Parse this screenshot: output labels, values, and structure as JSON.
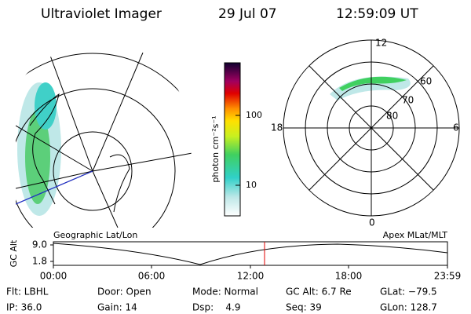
{
  "header": {
    "title": "Ultraviolet Imager",
    "date": "29 Jul 07",
    "time": "12:59:09 UT"
  },
  "colorbar": {
    "label": "photon cm⁻²s⁻¹",
    "ticks": [
      "100",
      "10"
    ]
  },
  "polar": {
    "mlt": [
      "12",
      "18",
      "6",
      "0"
    ],
    "mlat": [
      "60",
      "70",
      "80"
    ]
  },
  "altitude": {
    "left_title": "Geographic Lat/Lon",
    "right_title": "Apex MLat/MLT",
    "ylabel": "GC Alt",
    "yticks": [
      "9.0",
      "1.8"
    ],
    "xticks": [
      "00:00",
      "06:00",
      "12:00",
      "18:00",
      "23:59"
    ]
  },
  "footer": {
    "rows": [
      [
        "Flt: LBHL",
        "Door: Open",
        "Mode: Normal",
        "GC Alt: 6.7 Re",
        "GLat: −79.5"
      ],
      [
        "IP: 36.0",
        "Gain: 14",
        "Dsp:    4.9",
        "Seq: 39",
        "GLon: 128.7"
      ]
    ]
  }
}
